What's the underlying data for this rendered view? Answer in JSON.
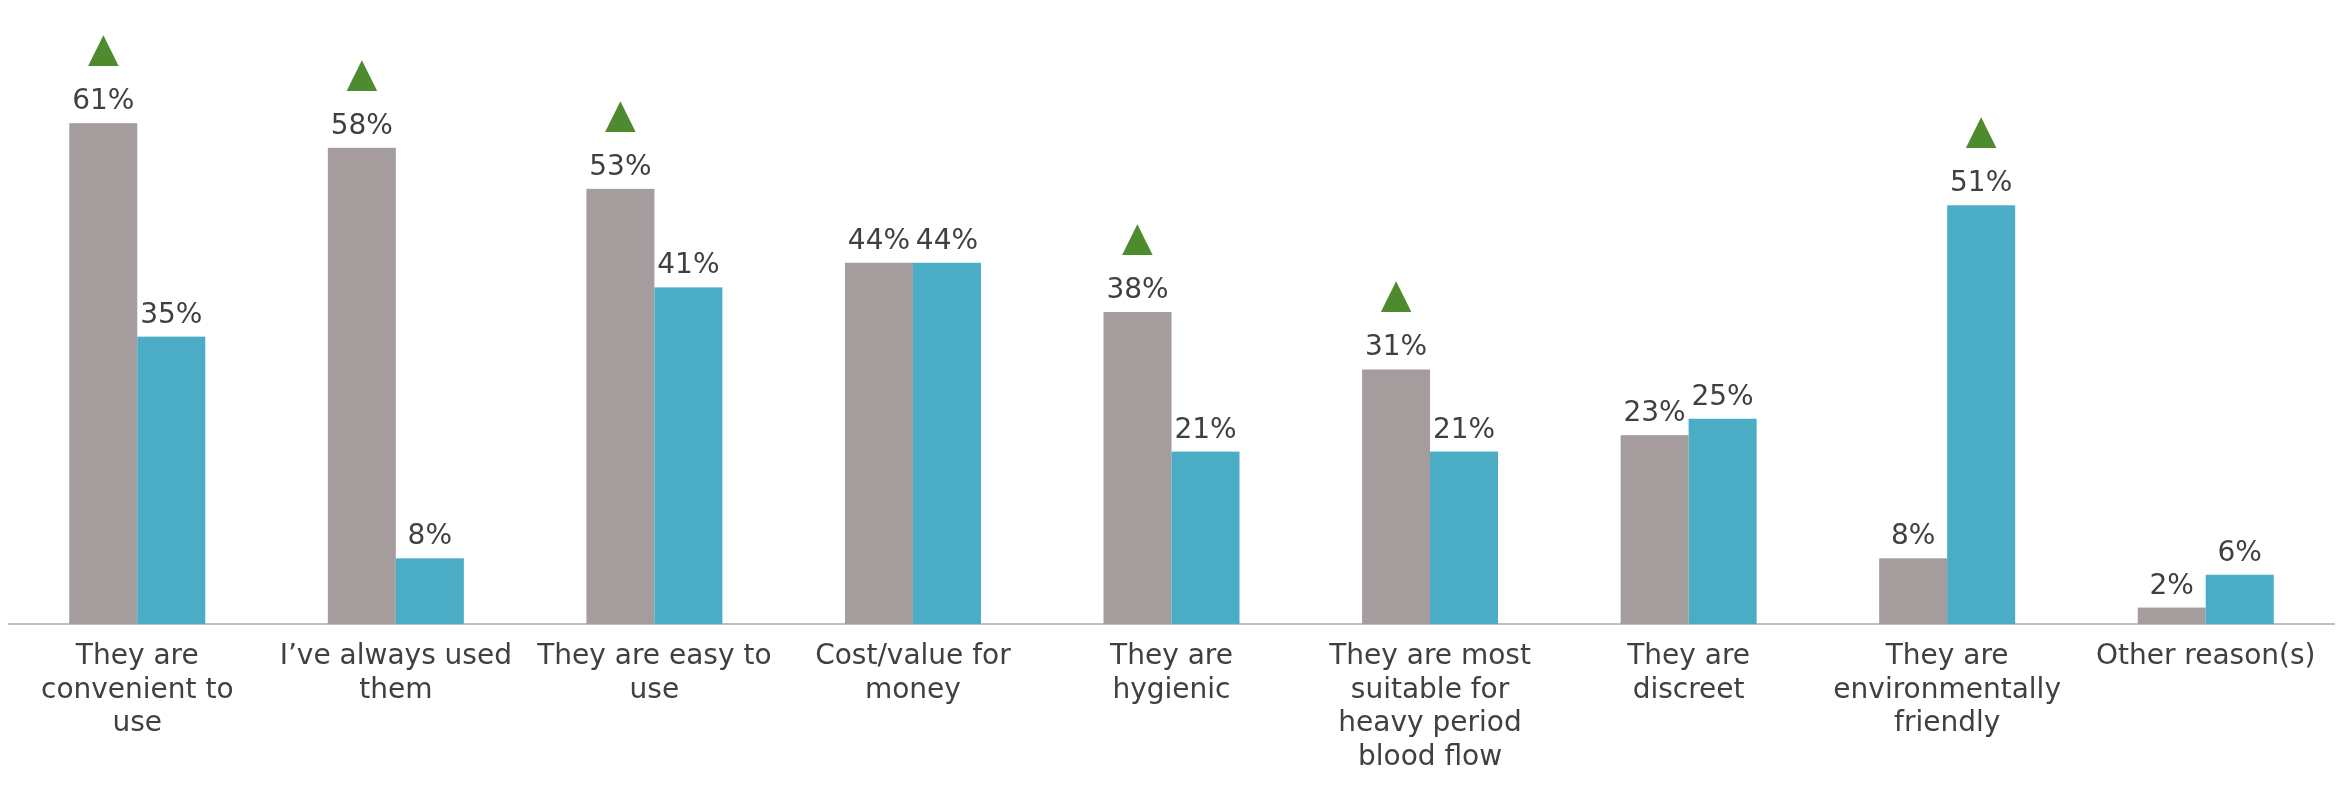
{
  "chart_data": {
    "type": "bar",
    "categories": [
      "They are convenient to use",
      "I’ve always used them",
      "They are easy to use",
      "Cost/value for money",
      "They are hygienic",
      "They are most suitable for heavy period blood flow",
      "They are discreet",
      "They are environmentally friendly",
      "Other reason(s)"
    ],
    "series": [
      {
        "color": "#a59c9d",
        "values": [
          61,
          58,
          53,
          44,
          38,
          31,
          23,
          8,
          2
        ],
        "value_labels": [
          "61%",
          "58%",
          "53%",
          "44%",
          "38%",
          "31%",
          "23%",
          "8%",
          "2%"
        ]
      },
      {
        "color": "#4bacc6",
        "values": [
          35,
          8,
          41,
          44,
          21,
          21,
          25,
          51,
          6
        ],
        "value_labels": [
          "35%",
          "8%",
          "41%",
          "44%",
          "21%",
          "21%",
          "25%",
          "51%",
          "6%"
        ]
      }
    ],
    "annotations": [
      {
        "text": "▲",
        "x": "They are convenient to use",
        "y": 61
      },
      {
        "text": "▲",
        "x": "I’ve always used them",
        "y": 58
      },
      {
        "text": "▲",
        "x": "They are easy to use",
        "y": 53
      },
      {
        "text": "▲",
        "x": "They are hygienic",
        "y": 38
      },
      {
        "text": "▲",
        "x": "They are most suitable for heavy period blood flow",
        "y": 31
      },
      {
        "text": "▲",
        "x": "They are environmentally friendly",
        "y": 51
      }
    ]
  }
}
